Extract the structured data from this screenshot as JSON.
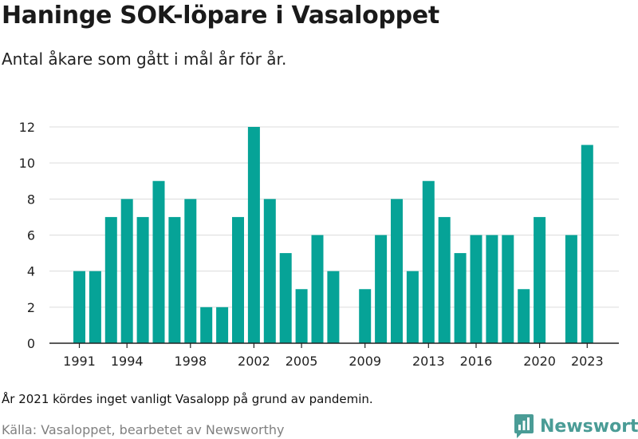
{
  "title": "Haninge SOK-löpare i Vasaloppet",
  "subtitle": "Antal åkare som gått i mål år för år.",
  "note": "År 2021 kördes inget vanligt Vasalopp på grund av pandemin.",
  "source": "Källa: Vasaloppet, bearbetet av Newsworthy",
  "brand": {
    "name": "Newsworthy",
    "icon": "newsworthy-logo-icon"
  },
  "colors": {
    "bar": "#06a397",
    "grid": "#dcdcdc",
    "axis": "#222222",
    "brand": "#4a9c96"
  },
  "chart_data": {
    "type": "bar",
    "title": "Haninge SOK-löpare i Vasaloppet",
    "subtitle": "Antal åkare som gått i mål år för år.",
    "xlabel": "",
    "ylabel": "",
    "ylim": [
      0,
      12
    ],
    "yticks": [
      0,
      2,
      4,
      6,
      8,
      10,
      12
    ],
    "xticks": [
      1991,
      1994,
      1998,
      2002,
      2005,
      2009,
      2013,
      2016,
      2020,
      2023
    ],
    "grid": true,
    "legend": "none",
    "categories": [
      1991,
      1992,
      1993,
      1994,
      1995,
      1996,
      1997,
      1998,
      1999,
      2000,
      2001,
      2002,
      2003,
      2004,
      2005,
      2006,
      2007,
      2008,
      2009,
      2010,
      2011,
      2012,
      2013,
      2014,
      2015,
      2016,
      2017,
      2018,
      2019,
      2020,
      2021,
      2022,
      2023
    ],
    "values": [
      4,
      4,
      7,
      8,
      7,
      9,
      7,
      8,
      2,
      2,
      7,
      12,
      8,
      5,
      3,
      6,
      4,
      null,
      3,
      6,
      8,
      4,
      9,
      7,
      5,
      6,
      6,
      6,
      3,
      7,
      null,
      6,
      11
    ]
  }
}
